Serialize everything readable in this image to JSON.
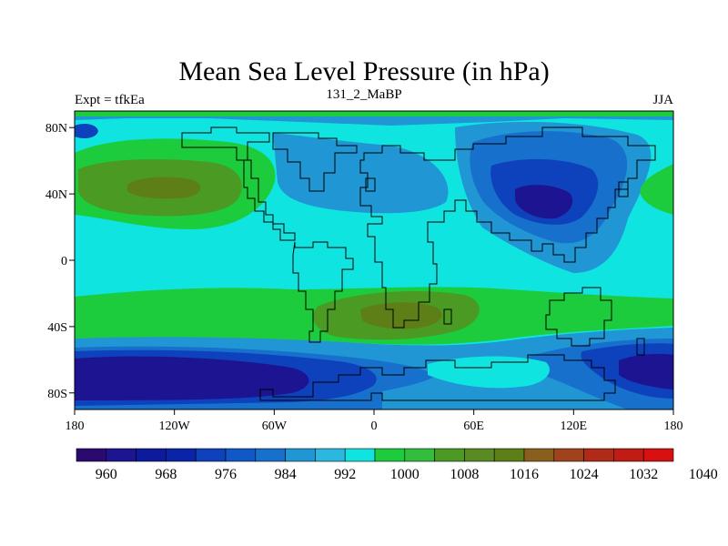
{
  "title": "Mean Sea Level Pressure (in hPa)",
  "subtitle_left": "Expt = tfkEa",
  "subtitle_center": "131_2_MaBP",
  "subtitle_right": "JJA",
  "lon_ticks": [
    "180",
    "120W",
    "60W",
    "0",
    "60E",
    "120E",
    "180"
  ],
  "lat_ticks": [
    "80N",
    "40N",
    "0",
    "40S",
    "80S"
  ],
  "colorbar": {
    "colors": [
      "#2a0a6e",
      "#1c1490",
      "#0d1a9c",
      "#0a24a8",
      "#0e42bc",
      "#1058c8",
      "#1670cc",
      "#2096d4",
      "#2ab8e0",
      "#10e4e0",
      "#1ccc3c",
      "#32be3c",
      "#4a9a24",
      "#5a8a22",
      "#5e7e18",
      "#8a5e1c",
      "#a0421c",
      "#b02a18",
      "#c01c14",
      "#d81010"
    ],
    "labels": [
      "960",
      "968",
      "976",
      "984",
      "992",
      "1000",
      "1008",
      "1016",
      "1024",
      "1032",
      "1040"
    ]
  },
  "colors": {
    "deep": "#1c1490",
    "low": "#0e42bc",
    "mid_low": "#1670cc",
    "lightblue": "#2096d4",
    "cyan": "#10e4e0",
    "green": "#1ccc3c",
    "olive": "#4a9a24",
    "brown": "#5e7e18"
  }
}
